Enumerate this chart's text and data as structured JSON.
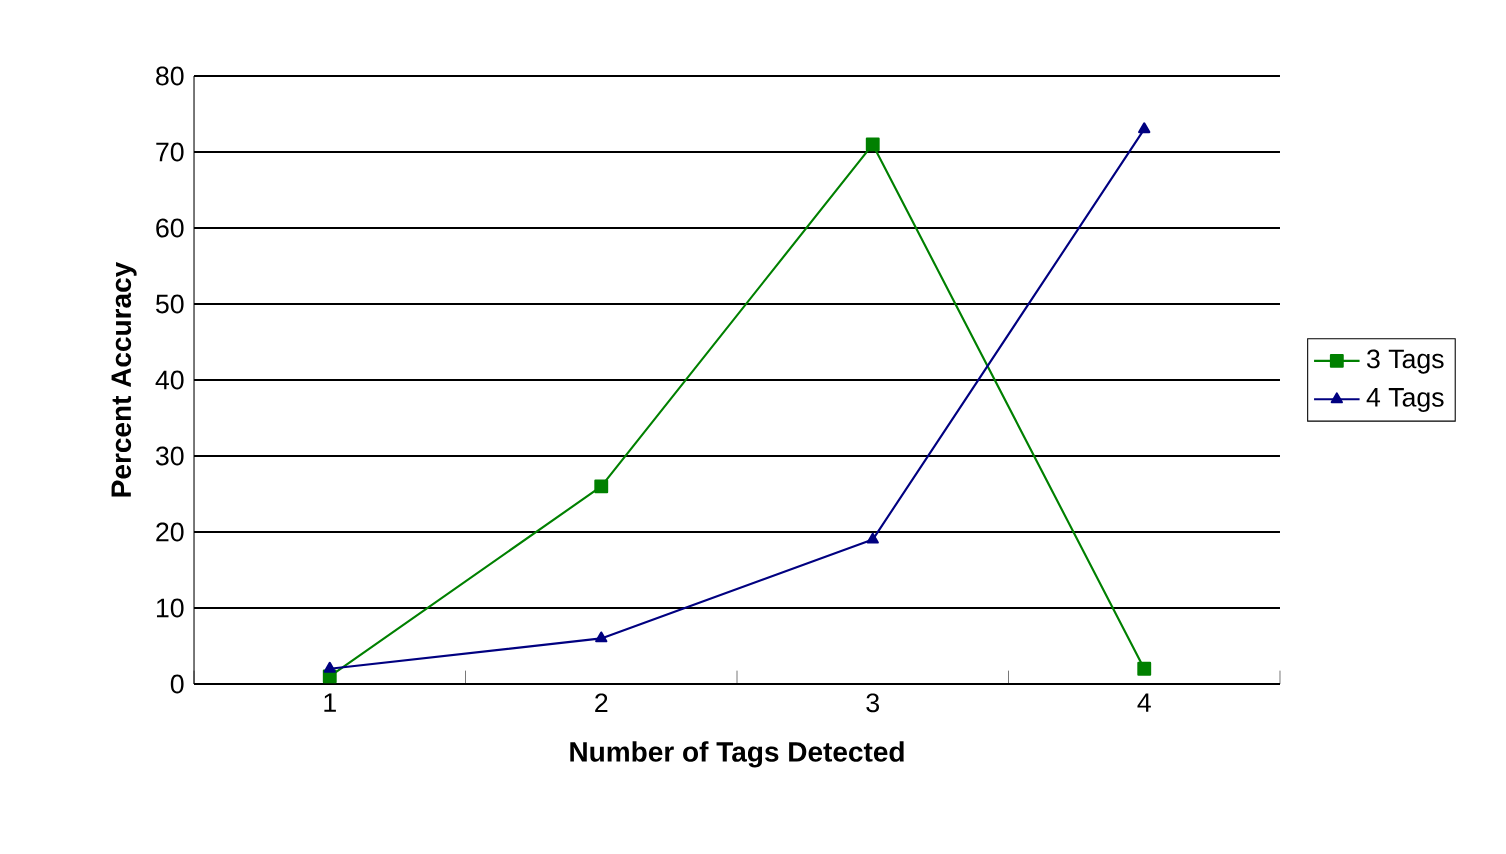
{
  "chart_data": {
    "type": "line",
    "xlabel": "Number of Tags Detected",
    "ylabel": "Percent Accuracy",
    "categories": [
      "1",
      "2",
      "3",
      "4"
    ],
    "series": [
      {
        "name": "3 Tags",
        "color": "#008000",
        "marker": "square",
        "values": [
          1,
          26,
          71,
          2
        ]
      },
      {
        "name": "4 Tags",
        "color": "#000080",
        "marker": "triangle",
        "values": [
          2,
          6,
          19,
          73
        ]
      }
    ],
    "ylim": [
      0,
      80
    ],
    "yticks": [
      0,
      10,
      20,
      30,
      40,
      50,
      60,
      70,
      80
    ],
    "grid": "y",
    "legend": "right"
  }
}
